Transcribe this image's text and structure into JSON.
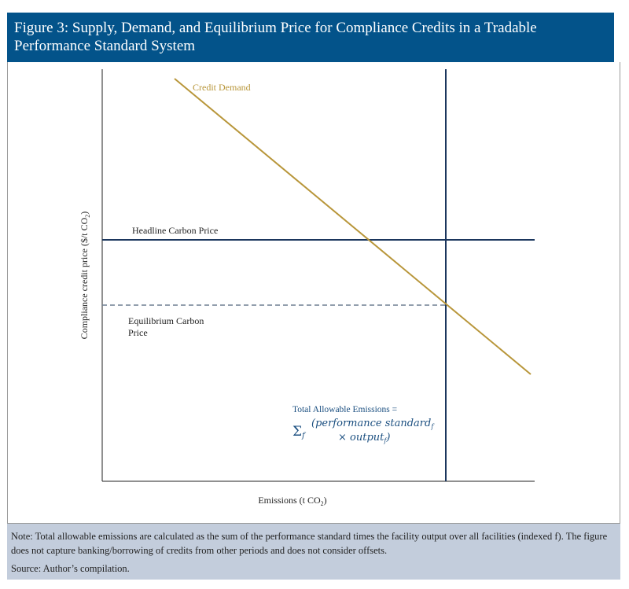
{
  "title": "Figure 3: Supply, Demand, and Equilibrium Price for Compliance Credits in a Tradable Performance Standard System",
  "diagram": {
    "y_axis_label": "Compliance credit price ($/t CO",
    "y_axis_label_sub": "2",
    "y_axis_label_end": ")",
    "x_axis_label": "Emissions (t CO",
    "x_axis_label_sub": "2",
    "x_axis_label_end": ")",
    "demand_label": "Credit Demand",
    "headline_label": "Headline Carbon Price",
    "equilibrium_label_1": "Equilibrium Carbon",
    "equilibrium_label_2": "Price",
    "supply_label": "Total Allowable Emissions =",
    "formula_sigma": "Σ",
    "formula_sigma_sub": "f",
    "formula_line1": "(performance standard",
    "formula_line1_sub": "f",
    "formula_line2": "× output",
    "formula_line2_sub": "f",
    "formula_line2_end": ")"
  },
  "colors": {
    "header": "#03538a",
    "demand": "#b8963a",
    "navy": "#1b365d",
    "dashed": "#6e7f92",
    "note_bg": "#c3cddc"
  },
  "note": "Note: Total allowable emissions are calculated as the sum of the performance standard times the facility output over all facilities (indexed f). The figure does not capture banking/borrowing of credits from other periods and does not consider offsets.",
  "source": "Source: Author’s compilation."
}
